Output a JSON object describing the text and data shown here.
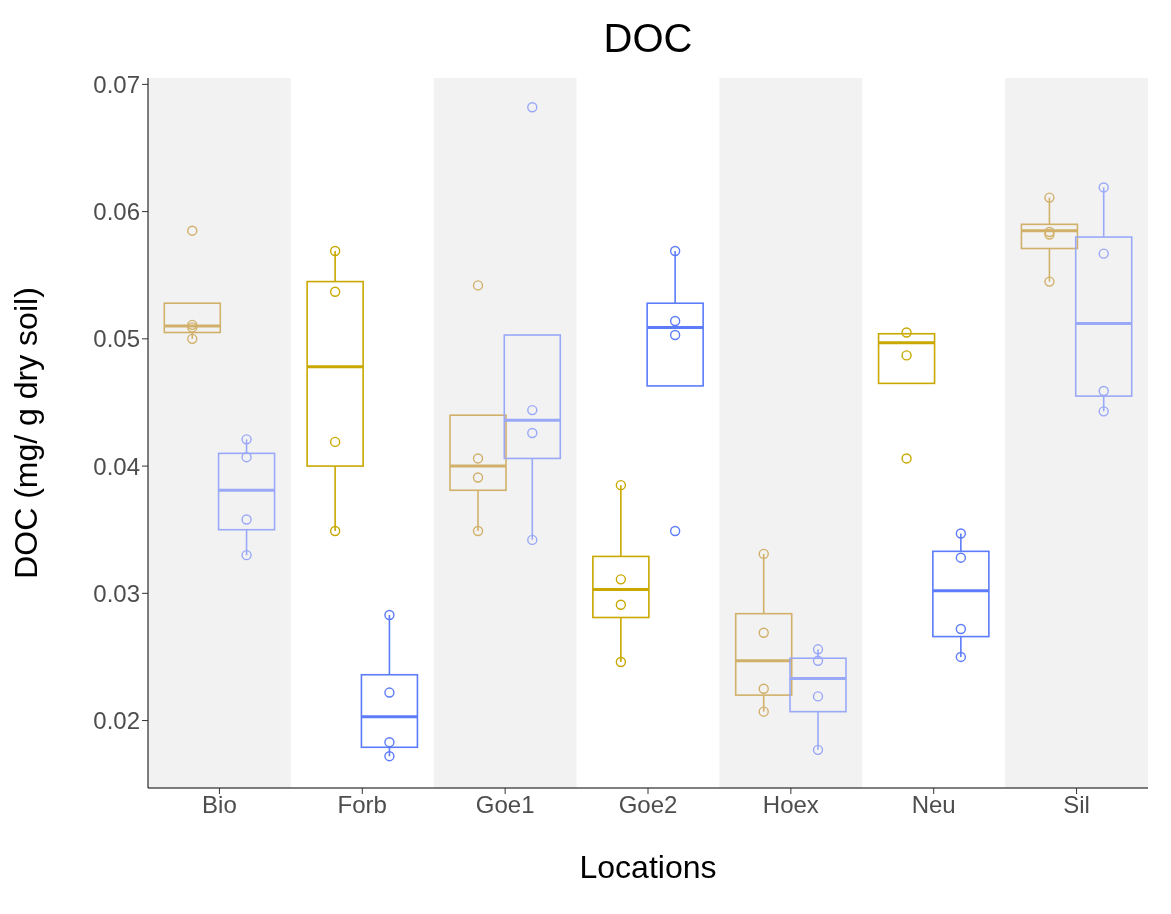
{
  "chart_data": {
    "type": "box",
    "title": "DOC",
    "xlabel": "Locations",
    "ylabel": "DOC (mg/ g dry soil)",
    "categories": [
      "Bio",
      "Forb",
      "Goe1",
      "Goe2",
      "Hoex",
      "Neu",
      "Sil"
    ],
    "ylim": [
      0.0147,
      0.0705
    ],
    "yticks": [
      0.02,
      0.03,
      0.04,
      0.05,
      0.06,
      0.07
    ],
    "bands": [
      {
        "axis": "x",
        "from": "Bio",
        "to": "Bio",
        "color": "#f2f2f2"
      },
      {
        "axis": "x",
        "from": "Goe1",
        "to": "Goe1",
        "color": "#f2f2f2"
      },
      {
        "axis": "x",
        "from": "Hoex",
        "to": "Hoex",
        "color": "#f2f2f2"
      },
      {
        "axis": "x",
        "from": "Sil",
        "to": "Sil",
        "color": "#f2f2f2"
      }
    ],
    "series": [
      {
        "colors": [
          "#d1b06a",
          "#c9a800",
          "#d1b06a",
          "#c9a800",
          "#d1b06a",
          "#c9a800",
          "#d1b06a"
        ],
        "boxes": [
          {
            "low": 0.05,
            "q1": 0.0505,
            "median": 0.051,
            "q3": 0.0528,
            "high": 0.0528
          },
          {
            "low": 0.0349,
            "q1": 0.04,
            "median": 0.0478,
            "q3": 0.0545,
            "high": 0.0569
          },
          {
            "low": 0.0349,
            "q1": 0.0381,
            "median": 0.04,
            "q3": 0.044,
            "high": 0.044
          },
          {
            "low": 0.0246,
            "q1": 0.0281,
            "median": 0.0303,
            "q3": 0.0329,
            "high": 0.0385
          },
          {
            "low": 0.0207,
            "q1": 0.022,
            "median": 0.0247,
            "q3": 0.0284,
            "high": 0.0331
          },
          {
            "low": 0.0465,
            "q1": 0.0465,
            "median": 0.0497,
            "q3": 0.0504,
            "high": 0.0504
          },
          {
            "low": 0.0545,
            "q1": 0.0571,
            "median": 0.0585,
            "q3": 0.059,
            "high": 0.0611
          }
        ]
      },
      {
        "colors": [
          "#9aa8f8",
          "#5c7cfa",
          "#9aa8f8",
          "#5c7cfa",
          "#9aa8f8",
          "#5c7cfa",
          "#9aa8f8"
        ],
        "boxes": [
          {
            "low": 0.033,
            "q1": 0.035,
            "median": 0.0381,
            "q3": 0.041,
            "high": 0.0421
          },
          {
            "low": 0.0172,
            "q1": 0.0179,
            "median": 0.0203,
            "q3": 0.0236,
            "high": 0.0283
          },
          {
            "low": 0.0342,
            "q1": 0.0406,
            "median": 0.0436,
            "q3": 0.0503,
            "high": 0.0503
          },
          {
            "low": 0.0463,
            "q1": 0.0463,
            "median": 0.0509,
            "q3": 0.0528,
            "high": 0.0569
          },
          {
            "low": 0.0177,
            "q1": 0.0207,
            "median": 0.0233,
            "q3": 0.0249,
            "high": 0.0256
          },
          {
            "low": 0.025,
            "q1": 0.0266,
            "median": 0.0302,
            "q3": 0.0333,
            "high": 0.0347
          },
          {
            "low": 0.0443,
            "q1": 0.0455,
            "median": 0.0512,
            "q3": 0.058,
            "high": 0.0619
          }
        ]
      },
      {
        "type": "scatter",
        "x": [
          "Bio",
          "Bio",
          "Bio",
          "Bio",
          "Forb",
          "Forb",
          "Forb",
          "Forb",
          "Goe1",
          "Goe1",
          "Goe1",
          "Goe1",
          "Goe2",
          "Goe2",
          "Goe2",
          "Goe2",
          "Hoex",
          "Hoex",
          "Hoex",
          "Hoex",
          "Neu",
          "Neu",
          "Neu",
          "Sil",
          "Sil",
          "Sil",
          "Sil"
        ],
        "values": [
          0.0585,
          0.0511,
          0.0509,
          0.05,
          0.0569,
          0.0537,
          0.0419,
          0.0349,
          0.0542,
          0.0406,
          0.0391,
          0.0349,
          0.0385,
          0.0311,
          0.0291,
          0.0246,
          0.0331,
          0.0269,
          0.0225,
          0.0207,
          0.0505,
          0.0487,
          0.0406,
          0.0611,
          0.0584,
          0.0582,
          0.0545
        ],
        "colors": [
          "#d1b06a",
          "#d1b06a",
          "#d1b06a",
          "#d1b06a",
          "#c9a800",
          "#c9a800",
          "#c9a800",
          "#c9a800",
          "#d1b06a",
          "#d1b06a",
          "#d1b06a",
          "#d1b06a",
          "#c9a800",
          "#c9a800",
          "#c9a800",
          "#c9a800",
          "#d1b06a",
          "#d1b06a",
          "#d1b06a",
          "#d1b06a",
          "#c9a800",
          "#c9a800",
          "#c9a800",
          "#d1b06a",
          "#d1b06a",
          "#d1b06a",
          "#d1b06a"
        ]
      },
      {
        "type": "scatter",
        "x": [
          "Bio",
          "Bio",
          "Bio",
          "Bio",
          "Forb",
          "Forb",
          "Forb",
          "Forb",
          "Goe1",
          "Goe1",
          "Goe1",
          "Goe1",
          "Goe2",
          "Goe2",
          "Goe2",
          "Goe2",
          "Hoex",
          "Hoex",
          "Hoex",
          "Hoex",
          "Neu",
          "Neu",
          "Neu",
          "Neu",
          "Sil",
          "Sil",
          "Sil",
          "Sil"
        ],
        "values": [
          0.0421,
          0.0407,
          0.0358,
          0.033,
          0.0283,
          0.0222,
          0.0183,
          0.0172,
          0.0682,
          0.0444,
          0.0426,
          0.0342,
          0.0569,
          0.0514,
          0.0503,
          0.0349,
          0.0256,
          0.0247,
          0.0219,
          0.0177,
          0.0347,
          0.0328,
          0.0272,
          0.025,
          0.0619,
          0.0567,
          0.0459,
          0.0443
        ],
        "colors": [
          "#9aa8f8",
          "#9aa8f8",
          "#9aa8f8",
          "#9aa8f8",
          "#5c7cfa",
          "#5c7cfa",
          "#5c7cfa",
          "#5c7cfa",
          "#9aa8f8",
          "#9aa8f8",
          "#9aa8f8",
          "#9aa8f8",
          "#5c7cfa",
          "#5c7cfa",
          "#5c7cfa",
          "#5c7cfa",
          "#9aa8f8",
          "#9aa8f8",
          "#9aa8f8",
          "#9aa8f8",
          "#5c7cfa",
          "#5c7cfa",
          "#5c7cfa",
          "#5c7cfa",
          "#9aa8f8",
          "#9aa8f8",
          "#9aa8f8",
          "#9aa8f8"
        ]
      }
    ]
  }
}
